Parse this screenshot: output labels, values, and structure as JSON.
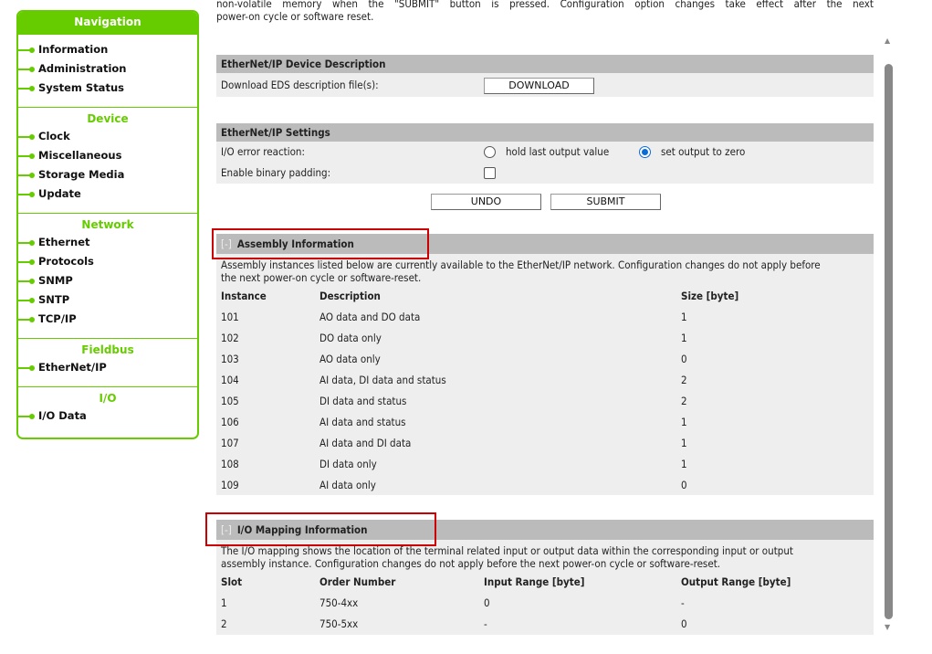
{
  "navigation": {
    "title": "Navigation",
    "groups": [
      {
        "title": "",
        "items": [
          "Information",
          "Administration",
          "System Status"
        ]
      },
      {
        "title": "Device",
        "items": [
          "Clock",
          "Miscellaneous",
          "Storage Media",
          "Update"
        ]
      },
      {
        "title": "Network",
        "items": [
          "Ethernet",
          "Protocols",
          "SNMP",
          "SNTP",
          "TCP/IP"
        ]
      },
      {
        "title": "Fieldbus",
        "items": [
          "EtherNet/IP"
        ]
      },
      {
        "title": "I/O",
        "items": [
          "I/O Data"
        ]
      }
    ]
  },
  "intro": {
    "line1": "non-volatile memory when the \"SUBMIT\" button is pressed. Configuration option changes take effect after the next",
    "line2": "power-on cycle or software reset."
  },
  "device_description": {
    "title": "EtherNet/IP Device Description",
    "label": "Download EDS description file(s):",
    "button": "DOWNLOAD"
  },
  "settings": {
    "title": "EtherNet/IP Settings",
    "io_error_label": "I/O error reaction:",
    "options": [
      {
        "label": "hold last output value",
        "selected": false
      },
      {
        "label": "set output to zero",
        "selected": true
      }
    ],
    "binary_padding_label": "Enable binary padding:",
    "binary_padding_checked": false,
    "undo": "UNDO",
    "submit": "SUBMIT"
  },
  "assembly": {
    "toggle": "[-]",
    "title": "Assembly Information",
    "desc1": "Assembly instances listed below are currently available to the EtherNet/IP network. Configuration changes do not apply before",
    "desc2": "the next power-on cycle or software-reset.",
    "columns": [
      "Instance",
      "Description",
      "Size [byte]"
    ],
    "rows": [
      [
        "101",
        "AO data and DO data",
        "1"
      ],
      [
        "102",
        "DO data only",
        "1"
      ],
      [
        "103",
        "AO data only",
        "0"
      ],
      [
        "104",
        "AI data, DI data and status",
        "2"
      ],
      [
        "105",
        "DI data and status",
        "2"
      ],
      [
        "106",
        "AI data and status",
        "1"
      ],
      [
        "107",
        "AI data and DI data",
        "1"
      ],
      [
        "108",
        "DI data only",
        "1"
      ],
      [
        "109",
        "AI data only",
        "0"
      ]
    ]
  },
  "mapping": {
    "toggle": "[-]",
    "title": "I/O Mapping Information",
    "desc1": "The I/O mapping shows the location of the terminal related input or output data within the corresponding input or output",
    "desc2": "assembly instance. Configuration changes do not apply before the next power-on cycle or software-reset.",
    "columns": [
      "Slot",
      "Order Number",
      "Input Range [byte]",
      "Output Range [byte]"
    ],
    "rows": [
      [
        "1",
        "750-4xx",
        "0",
        "-"
      ],
      [
        "2",
        "750-5xx",
        "-",
        "0"
      ]
    ]
  },
  "colors": {
    "accent": "#66cc00",
    "section_header": "#bbbbbb",
    "panel": "#eeeeee",
    "highlight": "#cc0000"
  }
}
